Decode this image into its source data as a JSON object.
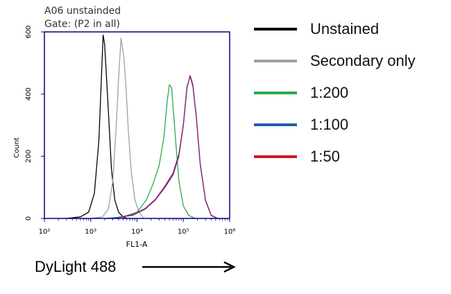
{
  "chart_data": {
    "type": "line",
    "title_lines": [
      "A06 unstainded",
      "Gate: (P2 in all)"
    ],
    "xlabel": "FL1-A",
    "ylabel": "Count",
    "x_scale": "log",
    "xlim": [
      100,
      1000000
    ],
    "ylim": [
      0,
      600
    ],
    "x_ticks": [
      {
        "value": 100,
        "label": "10²"
      },
      {
        "value": 1000,
        "label": "10³"
      },
      {
        "value": 10000,
        "label": "10⁴"
      },
      {
        "value": 100000,
        "label": "10⁵"
      },
      {
        "value": 1000000,
        "label": "10⁶"
      }
    ],
    "y_ticks": [
      0,
      200,
      400,
      600
    ],
    "grid": false,
    "legend_position": "right",
    "series": [
      {
        "name": "Unstained",
        "color": "#000000",
        "x": [
          300,
          600,
          900,
          1200,
          1500,
          1700,
          1850,
          2000,
          2200,
          2500,
          2800,
          3300,
          4000,
          5000,
          6000
        ],
        "y": [
          0,
          5,
          20,
          80,
          250,
          450,
          590,
          560,
          450,
          300,
          160,
          60,
          20,
          5,
          0
        ]
      },
      {
        "name": "Secondary only",
        "color": "#a0a0a0",
        "x": [
          1000,
          1800,
          2400,
          3000,
          3500,
          4000,
          4500,
          5200,
          5800,
          6500,
          7500,
          9000,
          11000,
          14000
        ],
        "y": [
          0,
          5,
          30,
          120,
          280,
          450,
          580,
          520,
          420,
          280,
          150,
          60,
          20,
          0
        ]
      },
      {
        "name": "1:200",
        "color": "#2aa84a",
        "x": [
          2000,
          5000,
          10000,
          16000,
          22000,
          30000,
          38000,
          45000,
          50000,
          56000,
          62000,
          70000,
          80000,
          100000,
          130000,
          180000
        ],
        "y": [
          0,
          5,
          20,
          60,
          110,
          170,
          260,
          380,
          430,
          420,
          330,
          230,
          120,
          40,
          10,
          0
        ]
      },
      {
        "name": "1:100",
        "color": "#1f5fa8",
        "x": [
          3000,
          8000,
          15000,
          25000,
          40000,
          60000,
          80000,
          100000,
          120000,
          140000,
          160000,
          190000,
          230000,
          300000,
          400000,
          550000
        ],
        "y": [
          0,
          10,
          30,
          60,
          100,
          140,
          200,
          300,
          420,
          460,
          430,
          330,
          180,
          60,
          10,
          0
        ]
      },
      {
        "name": "1:50",
        "color": "#d01818",
        "x": [
          3000,
          8000,
          15000,
          25000,
          40000,
          60000,
          80000,
          100000,
          120000,
          140000,
          160000,
          190000,
          230000,
          300000,
          400000,
          550000
        ],
        "y": [
          0,
          12,
          32,
          62,
          104,
          146,
          206,
          304,
          424,
          456,
          426,
          326,
          176,
          58,
          9,
          0
        ]
      }
    ],
    "draw_colors": {
      "1:100": "#6a1f7e",
      "1:50": "#8a2a6e"
    }
  },
  "caption": "DyLight 488"
}
